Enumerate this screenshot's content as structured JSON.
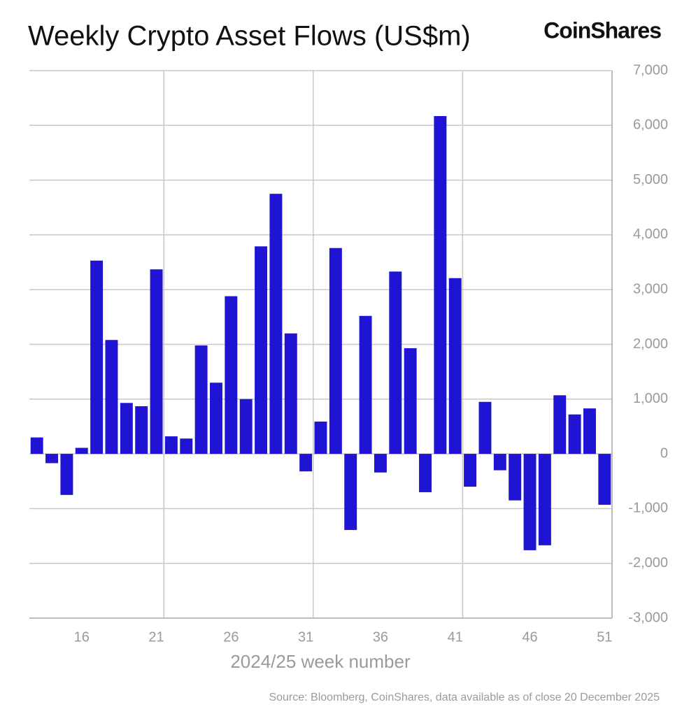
{
  "chart_data": {
    "type": "bar",
    "title": "Weekly Crypto Asset Flows (US$m)",
    "logo": "CoinShares",
    "x_label": "2024/25 week number",
    "source": "Source: Bloomberg, CoinShares, data available as of close 20 December 2025",
    "x": [
      13,
      14,
      15,
      16,
      17,
      18,
      19,
      20,
      21,
      22,
      23,
      24,
      25,
      26,
      27,
      28,
      29,
      30,
      31,
      32,
      33,
      34,
      35,
      36,
      37,
      38,
      39,
      40,
      41,
      42,
      43,
      44,
      45,
      46,
      47,
      48,
      49,
      50,
      51
    ],
    "values": [
      300,
      -170,
      -750,
      110,
      3530,
      2080,
      930,
      870,
      3370,
      320,
      280,
      1980,
      1300,
      2880,
      1000,
      3790,
      4750,
      2200,
      -320,
      590,
      3760,
      -1390,
      2520,
      -340,
      3330,
      1930,
      -700,
      6170,
      3210,
      -600,
      950,
      -300,
      -850,
      -1760,
      -1670,
      1070,
      720,
      830,
      -930
    ],
    "color": "#1f14d4",
    "xlim": [
      12.5,
      51.5
    ],
    "xticks": [
      16,
      21,
      26,
      31,
      36,
      41,
      46,
      51
    ],
    "ylim": [
      -3000,
      7000
    ],
    "yticks": [
      {
        "value": -3000,
        "label": "-3,000"
      },
      {
        "value": -2000,
        "label": "-2,000"
      },
      {
        "value": -1000,
        "label": "-1,000"
      },
      0,
      {
        "value": 1000,
        "label": "1,000"
      },
      {
        "value": 2000,
        "label": "2,000"
      },
      {
        "value": 3000,
        "label": "3,000"
      },
      {
        "value": 4000,
        "label": "4,000"
      },
      {
        "value": 5000,
        "label": "5,000"
      },
      {
        "value": 6000,
        "label": "6,000"
      },
      {
        "value": 7000,
        "label": "7,000"
      }
    ],
    "grid": true,
    "y_axis_side": "right"
  }
}
